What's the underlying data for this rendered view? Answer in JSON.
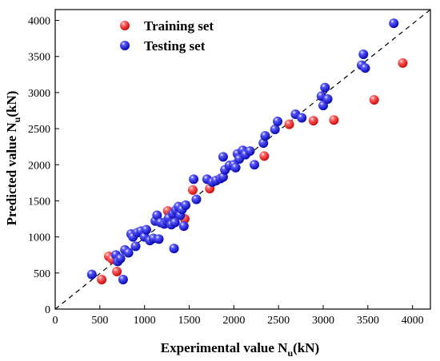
{
  "chart_data": {
    "type": "scatter",
    "xlabel": {
      "main": "Experimental value N",
      "sub": "u",
      "unit": "(kN)"
    },
    "ylabel": {
      "main": "Predicted value N",
      "sub": "u",
      "unit": "(kN)"
    },
    "xlim": [
      0,
      4200
    ],
    "ylim": [
      0,
      4150
    ],
    "xticks": [
      "0",
      "500",
      "1000",
      "1500",
      "2000",
      "2500",
      "3000",
      "3500",
      "4000"
    ],
    "yticks": [
      "0",
      "500",
      "1000",
      "1500",
      "2000",
      "2500",
      "3000",
      "3500",
      "4000"
    ],
    "grid": false,
    "legend_position": "top-left",
    "reference_line": {
      "style": "dashed",
      "from": [
        0,
        0
      ],
      "to": [
        4200,
        4150
      ]
    },
    "series": [
      {
        "name": "Training set",
        "color": "#e8141a",
        "points": [
          [
            520,
            410
          ],
          [
            600,
            730
          ],
          [
            640,
            690
          ],
          [
            690,
            520
          ],
          [
            1260,
            1360
          ],
          [
            1450,
            1250
          ],
          [
            1540,
            1650
          ],
          [
            1730,
            1670
          ],
          [
            2340,
            2120
          ],
          [
            2620,
            2560
          ],
          [
            2890,
            2610
          ],
          [
            3120,
            2620
          ],
          [
            3570,
            2900
          ],
          [
            3890,
            3410
          ]
        ]
      },
      {
        "name": "Testing set",
        "color": "#1414d8",
        "points": [
          [
            410,
            480
          ],
          [
            680,
            750
          ],
          [
            700,
            660
          ],
          [
            730,
            700
          ],
          [
            760,
            410
          ],
          [
            780,
            820
          ],
          [
            820,
            780
          ],
          [
            850,
            1040
          ],
          [
            870,
            1000
          ],
          [
            900,
            870
          ],
          [
            920,
            1060
          ],
          [
            960,
            1080
          ],
          [
            1000,
            1000
          ],
          [
            1020,
            1100
          ],
          [
            1060,
            950
          ],
          [
            1100,
            980
          ],
          [
            1120,
            1220
          ],
          [
            1140,
            1300
          ],
          [
            1160,
            970
          ],
          [
            1180,
            1200
          ],
          [
            1220,
            1180
          ],
          [
            1250,
            1220
          ],
          [
            1270,
            1260
          ],
          [
            1300,
            1170
          ],
          [
            1320,
            1320
          ],
          [
            1330,
            840
          ],
          [
            1340,
            1200
          ],
          [
            1350,
            1370
          ],
          [
            1380,
            1420
          ],
          [
            1400,
            1300
          ],
          [
            1420,
            1380
          ],
          [
            1440,
            1150
          ],
          [
            1460,
            1440
          ],
          [
            1550,
            1800
          ],
          [
            1580,
            1520
          ],
          [
            1700,
            1800
          ],
          [
            1760,
            1760
          ],
          [
            1800,
            1780
          ],
          [
            1850,
            1810
          ],
          [
            1880,
            1830
          ],
          [
            1880,
            2110
          ],
          [
            1900,
            1930
          ],
          [
            1950,
            1990
          ],
          [
            2000,
            2000
          ],
          [
            2020,
            1960
          ],
          [
            2040,
            2150
          ],
          [
            2060,
            2080
          ],
          [
            2100,
            2200
          ],
          [
            2130,
            2140
          ],
          [
            2180,
            2190
          ],
          [
            2230,
            2000
          ],
          [
            2330,
            2300
          ],
          [
            2350,
            2400
          ],
          [
            2460,
            2490
          ],
          [
            2490,
            2600
          ],
          [
            2690,
            2700
          ],
          [
            2760,
            2650
          ],
          [
            2980,
            2950
          ],
          [
            3000,
            2820
          ],
          [
            3020,
            3070
          ],
          [
            3050,
            2910
          ],
          [
            3430,
            3380
          ],
          [
            3450,
            3530
          ],
          [
            3470,
            3340
          ],
          [
            3790,
            3960
          ]
        ]
      }
    ]
  }
}
